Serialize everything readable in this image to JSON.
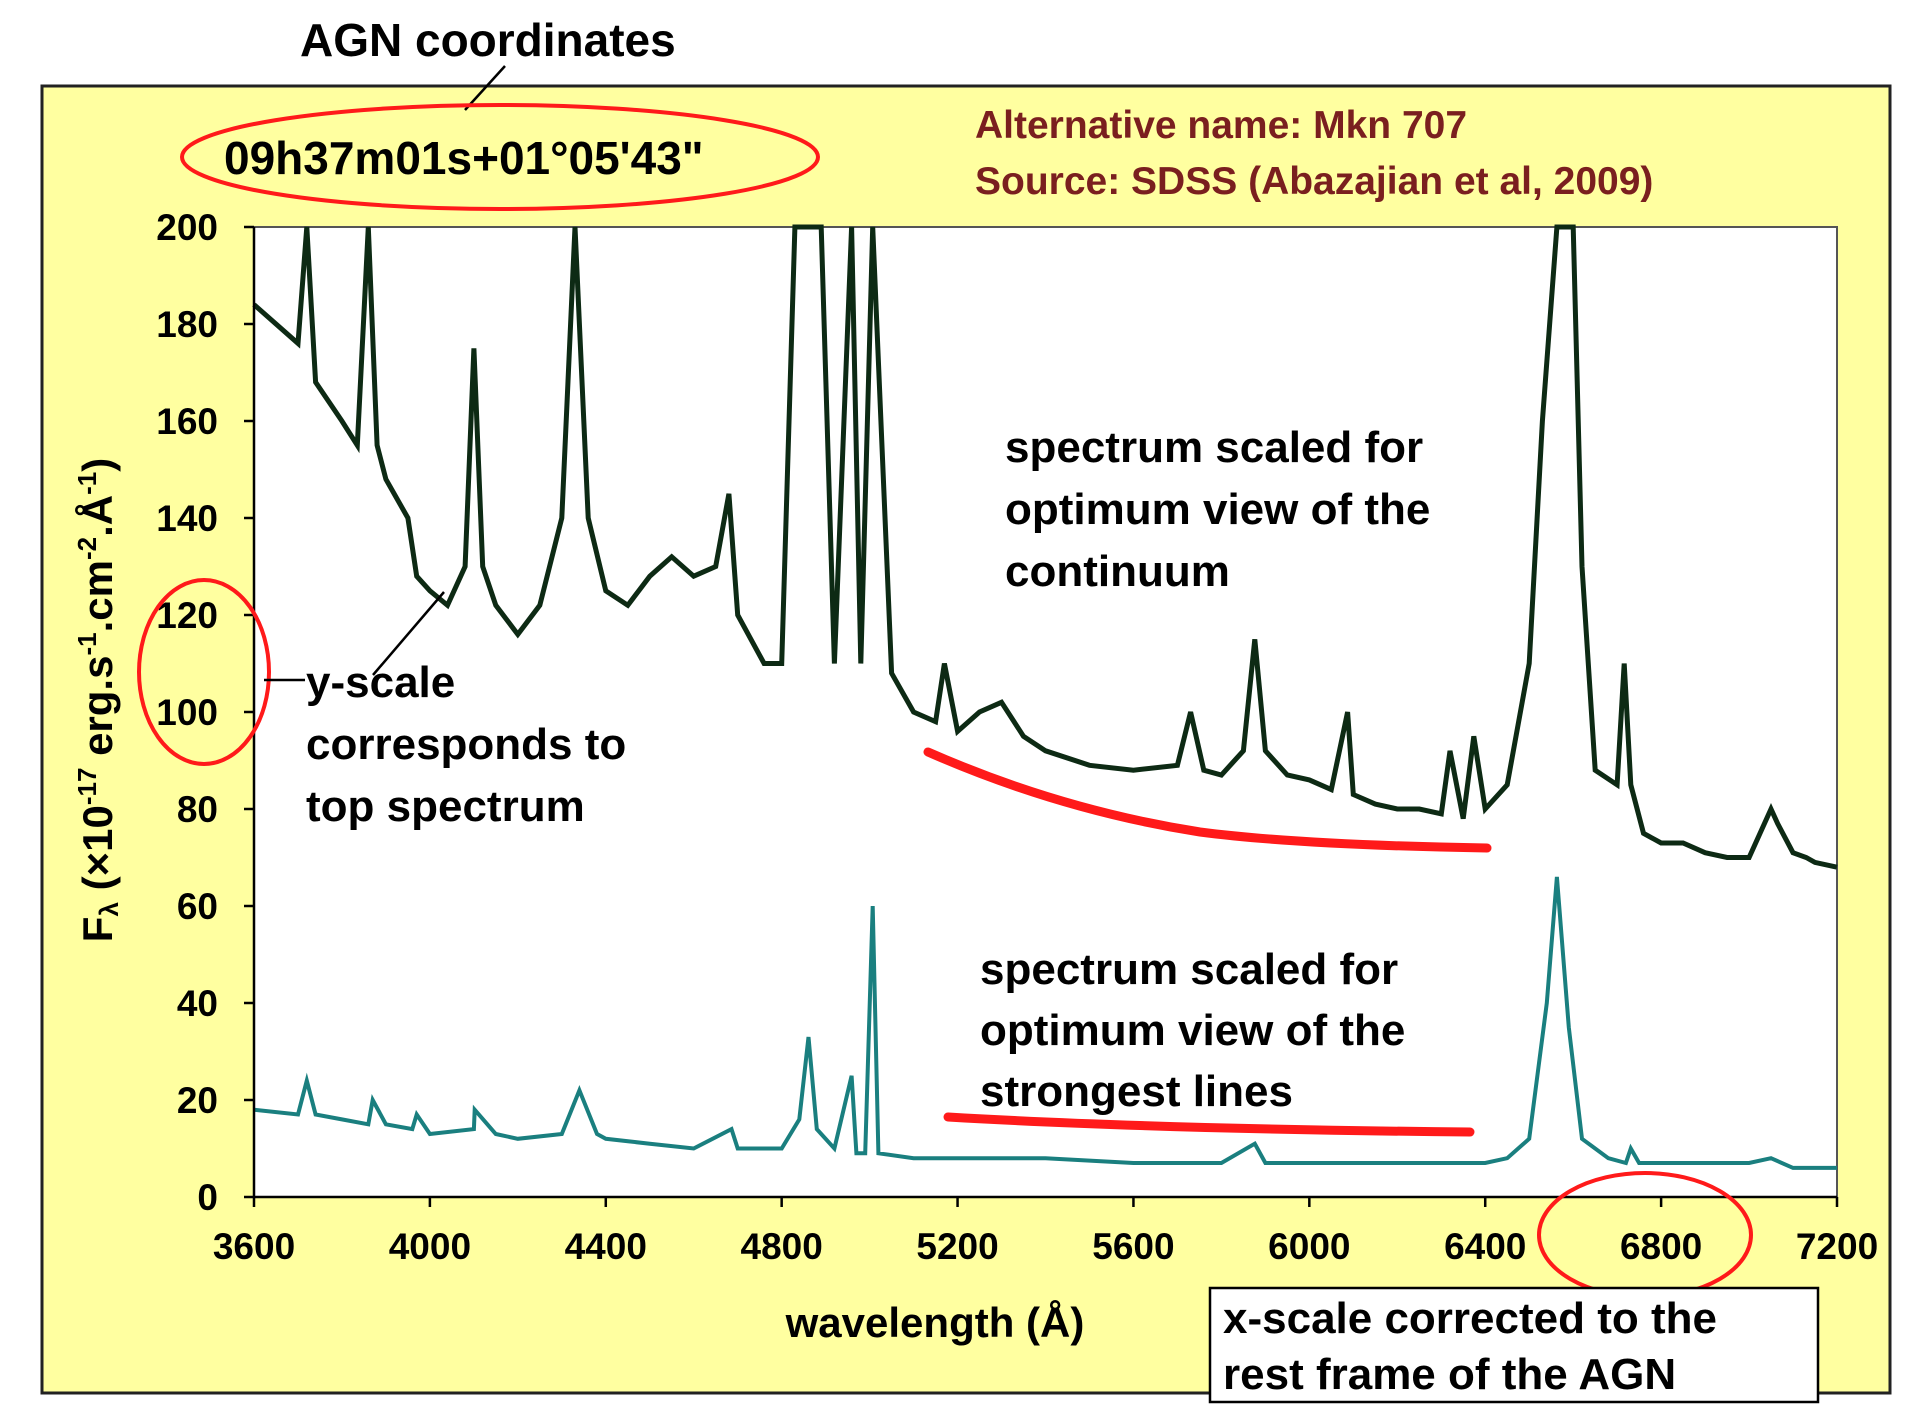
{
  "header": {
    "coord_title": "AGN coordinates",
    "coord_value": "09h37m01s+01°05'43\"",
    "alt_name": "Alternative name: Mkn 707",
    "source": "Source: SDSS (Abazajian et al, 2009)"
  },
  "annotations": {
    "continuum_note": [
      "spectrum scaled for",
      "optimum view of the",
      "continuum"
    ],
    "lines_note": [
      "spectrum scaled for",
      "optimum view of the",
      "strongest lines"
    ],
    "yscale_note": [
      "y-scale",
      "corresponds to",
      "top spectrum"
    ],
    "xscale_note": [
      "x-scale corrected to the",
      "rest frame of the AGN"
    ]
  },
  "colors": {
    "frame_bg": "#ffffa0",
    "plot_bg": "#ffffff",
    "top_spectrum": "#0d2a14",
    "bottom_spectrum": "#1a7f7f",
    "highlight": "#ff0000",
    "text_brown": "#7a1f1f"
  },
  "chart_data": {
    "type": "line",
    "xlabel": "wavelength (Å)",
    "ylabel": "Fλ (×10-17 erg.s-1.cm-2.Å-1)",
    "ylabel_parts": {
      "f": "F",
      "lambda": "λ",
      "open": " (×10",
      "exp1": "-17",
      "mid1": " erg.s",
      "exp2": "-1",
      "mid2": ".cm",
      "exp3": "-2",
      "mid3": ".Å",
      "exp4": "-1",
      "close": ")"
    },
    "xlim": [
      3600,
      7200
    ],
    "ylim": [
      0,
      200
    ],
    "x_ticks": [
      "3600",
      "4000",
      "4400",
      "4800",
      "5200",
      "5600",
      "6000",
      "6400",
      "6800",
      "7200"
    ],
    "y_ticks": [
      "0",
      "20",
      "40",
      "60",
      "80",
      "100",
      "120",
      "140",
      "160",
      "180",
      "200"
    ],
    "grid": false,
    "series": [
      {
        "id": "top",
        "x": [
          3600,
          3650,
          3700,
          3720,
          3740,
          3800,
          3835,
          3860,
          3880,
          3900,
          3950,
          3970,
          4000,
          4040,
          4080,
          4100,
          4120,
          4150,
          4200,
          4250,
          4300,
          4330,
          4360,
          4400,
          4450,
          4500,
          4550,
          4600,
          4650,
          4680,
          4700,
          4760,
          4800,
          4830,
          4861,
          4890,
          4920,
          4959,
          4980,
          5007,
          5050,
          5100,
          5150,
          5170,
          5200,
          5250,
          5300,
          5350,
          5400,
          5500,
          5600,
          5700,
          5730,
          5760,
          5800,
          5850,
          5876,
          5900,
          5950,
          6000,
          6050,
          6087,
          6100,
          6150,
          6200,
          6250,
          6300,
          6320,
          6350,
          6374,
          6400,
          6450,
          6500,
          6530,
          6563,
          6600,
          6620,
          6650,
          6700,
          6716,
          6731,
          6760,
          6800,
          6850,
          6900,
          6950,
          7000,
          7050,
          7065,
          7100,
          7130,
          7150,
          7200
        ],
        "y": [
          184,
          180,
          176,
          200,
          168,
          160,
          155,
          200,
          155,
          148,
          140,
          128,
          125,
          122,
          130,
          175,
          130,
          122,
          116,
          122,
          140,
          200,
          140,
          125,
          122,
          128,
          132,
          128,
          130,
          145,
          120,
          110,
          110,
          200,
          200,
          200,
          110,
          200,
          110,
          200,
          108,
          100,
          98,
          110,
          96,
          100,
          102,
          95,
          92,
          89,
          88,
          89,
          100,
          88,
          87,
          92,
          115,
          92,
          87,
          86,
          84,
          100,
          83,
          81,
          80,
          80,
          79,
          92,
          78,
          95,
          80,
          85,
          110,
          160,
          200,
          200,
          130,
          88,
          85,
          110,
          85,
          75,
          73,
          73,
          71,
          70,
          70,
          80,
          77,
          71,
          70,
          69,
          68
        ]
      },
      {
        "id": "bottom",
        "x": [
          3600,
          3700,
          3720,
          3740,
          3800,
          3860,
          3870,
          3900,
          3960,
          3970,
          4000,
          4100,
          4102,
          4150,
          4200,
          4300,
          4340,
          4380,
          4400,
          4500,
          4600,
          4686,
          4700,
          4800,
          4840,
          4861,
          4880,
          4920,
          4959,
          4970,
          4990,
          5007,
          5020,
          5100,
          5200,
          5400,
          5600,
          5800,
          5876,
          5900,
          6000,
          6100,
          6200,
          6300,
          6400,
          6450,
          6500,
          6540,
          6563,
          6590,
          6620,
          6680,
          6720,
          6731,
          6750,
          6800,
          7000,
          7050,
          7100,
          7200
        ],
        "y": [
          18,
          17,
          24,
          17,
          16,
          15,
          20,
          15,
          14,
          17,
          13,
          14,
          18,
          13,
          12,
          13,
          22,
          13,
          12,
          11,
          10,
          14,
          10,
          10,
          16,
          33,
          14,
          10,
          25,
          9,
          9,
          60,
          9,
          8,
          8,
          8,
          7,
          7,
          11,
          7,
          7,
          7,
          7,
          7,
          7,
          8,
          12,
          40,
          66,
          35,
          12,
          8,
          7,
          10,
          7,
          7,
          7,
          8,
          6,
          6
        ]
      }
    ]
  }
}
